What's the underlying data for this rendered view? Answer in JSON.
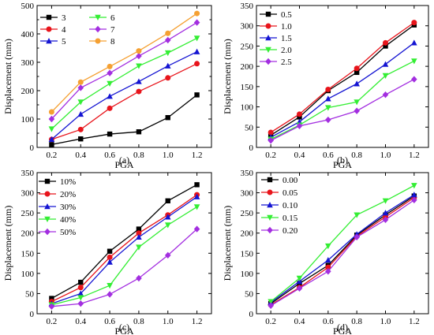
{
  "figure": {
    "width": 550,
    "height": 425
  },
  "chart_data": [
    {
      "type": "line",
      "panel_label": "(a)",
      "xlabel": "PGA",
      "ylabel": "Displacement (mm)",
      "x": [
        0.2,
        0.4,
        0.6,
        0.8,
        1.0,
        1.2
      ],
      "xlim": [
        0.1,
        1.3
      ],
      "ylim": [
        0,
        500
      ],
      "xticks": [
        0.2,
        0.4,
        0.6,
        0.8,
        1.0,
        1.2
      ],
      "xtick_labels": [
        "0.2",
        "0.4",
        "0.6",
        "0.8",
        "1.0",
        "1.2"
      ],
      "yticks": [
        0,
        50,
        100,
        150,
        200,
        250,
        300,
        350,
        400,
        450,
        500
      ],
      "ytick_labels": [
        "0",
        "",
        "100",
        "",
        "200",
        "",
        "300",
        "",
        "400",
        "",
        "500"
      ],
      "legend": {
        "position": "top-left",
        "columns": 2
      },
      "series": [
        {
          "name": "3",
          "color": "#000000",
          "marker": "square",
          "values": [
            10,
            30,
            47,
            55,
            105,
            185
          ]
        },
        {
          "name": "4",
          "color": "#e8141b",
          "marker": "circle",
          "values": [
            28,
            63,
            138,
            197,
            245,
            295
          ]
        },
        {
          "name": "5",
          "color": "#1414d2",
          "marker": "triangle-up",
          "values": [
            28,
            117,
            180,
            232,
            287,
            337
          ]
        },
        {
          "name": "6",
          "color": "#33ee33",
          "marker": "triangle-down",
          "values": [
            65,
            160,
            225,
            287,
            333,
            385
          ]
        },
        {
          "name": "7",
          "color": "#a32ee0",
          "marker": "diamond",
          "values": [
            100,
            210,
            262,
            322,
            378,
            440
          ]
        },
        {
          "name": "8",
          "color": "#f5a032",
          "marker": "circle",
          "values": [
            125,
            230,
            285,
            340,
            402,
            472
          ]
        }
      ]
    },
    {
      "type": "line",
      "panel_label": "(b)",
      "xlabel": "PGA",
      "ylabel": "Displacement (mm)",
      "x": [
        0.2,
        0.4,
        0.6,
        0.8,
        1.0,
        1.2
      ],
      "xlim": [
        0.1,
        1.3
      ],
      "ylim": [
        0,
        350
      ],
      "xticks": [
        0.2,
        0.4,
        0.6,
        0.8,
        1.0,
        1.2
      ],
      "xtick_labels": [
        "0.2",
        "0.4",
        "0.6",
        "0.8",
        "1.0",
        "1.2"
      ],
      "yticks": [
        0,
        50,
        100,
        150,
        200,
        250,
        300,
        350
      ],
      "ytick_labels": [
        "0",
        "50",
        "100",
        "150",
        "200",
        "250",
        "300",
        "350"
      ],
      "legend": {
        "position": "top-left",
        "columns": 1
      },
      "series": [
        {
          "name": "0.5",
          "color": "#000000",
          "marker": "square",
          "values": [
            30,
            75,
            140,
            185,
            250,
            302
          ]
        },
        {
          "name": "1.0",
          "color": "#e8141b",
          "marker": "circle",
          "values": [
            37,
            82,
            143,
            195,
            258,
            308
          ]
        },
        {
          "name": "1.5",
          "color": "#1414d2",
          "marker": "triangle-up",
          "values": [
            25,
            63,
            120,
            157,
            205,
            258
          ]
        },
        {
          "name": "2.0",
          "color": "#33ee33",
          "marker": "triangle-down",
          "values": [
            20,
            55,
            98,
            112,
            177,
            213
          ]
        },
        {
          "name": "2.5",
          "color": "#a32ee0",
          "marker": "diamond",
          "values": [
            17,
            53,
            68,
            90,
            130,
            168
          ]
        }
      ]
    },
    {
      "type": "line",
      "panel_label": "(c)",
      "xlabel": "PGA",
      "ylabel": "Displacement (mm)",
      "x": [
        0.2,
        0.4,
        0.6,
        0.8,
        1.0,
        1.2
      ],
      "xlim": [
        0.1,
        1.3
      ],
      "ylim": [
        0,
        350
      ],
      "xticks": [
        0.2,
        0.4,
        0.6,
        0.8,
        1.0,
        1.2
      ],
      "xtick_labels": [
        "0.2",
        "0.4",
        "0.6",
        "0.8",
        "1.0",
        "1.2"
      ],
      "yticks": [
        0,
        50,
        100,
        150,
        200,
        250,
        300,
        350
      ],
      "ytick_labels": [
        "0",
        "50",
        "100",
        "150",
        "200",
        "250",
        "300",
        "350"
      ],
      "legend": {
        "position": "top-left",
        "columns": 1
      },
      "series": [
        {
          "name": "10%",
          "color": "#000000",
          "marker": "square",
          "values": [
            38,
            78,
            155,
            210,
            280,
            320
          ]
        },
        {
          "name": "20%",
          "color": "#e8141b",
          "marker": "circle",
          "values": [
            30,
            65,
            140,
            200,
            245,
            295
          ]
        },
        {
          "name": "30%",
          "color": "#1414d2",
          "marker": "triangle-up",
          "values": [
            25,
            50,
            128,
            190,
            240,
            290
          ]
        },
        {
          "name": "40%",
          "color": "#33ee33",
          "marker": "triangle-down",
          "values": [
            22,
            40,
            70,
            165,
            220,
            265
          ]
        },
        {
          "name": "50%",
          "color": "#a32ee0",
          "marker": "diamond",
          "values": [
            18,
            25,
            48,
            88,
            145,
            210
          ]
        }
      ]
    },
    {
      "type": "line",
      "panel_label": "(d)",
      "xlabel": "PGA",
      "ylabel": "Displacement (mm)",
      "x": [
        0.2,
        0.4,
        0.6,
        0.8,
        1.0,
        1.2
      ],
      "xlim": [
        0.1,
        1.3
      ],
      "ylim": [
        0,
        350
      ],
      "xticks": [
        0.2,
        0.4,
        0.6,
        0.8,
        1.0,
        1.2
      ],
      "xtick_labels": [
        "0.2",
        "0.4",
        "0.6",
        "0.8",
        "1.0",
        "1.2"
      ],
      "yticks": [
        0,
        50,
        100,
        150,
        200,
        250,
        300,
        350
      ],
      "ytick_labels": [
        "0",
        "50",
        "100",
        "150",
        "200",
        "250",
        "300",
        "350"
      ],
      "legend": {
        "position": "top-left",
        "columns": 1
      },
      "series": [
        {
          "name": "0.00",
          "color": "#000000",
          "marker": "square",
          "values": [
            25,
            75,
            120,
            195,
            245,
            292
          ]
        },
        {
          "name": "0.05",
          "color": "#e8141b",
          "marker": "circle",
          "values": [
            22,
            65,
            115,
            192,
            240,
            288
          ]
        },
        {
          "name": "0.10",
          "color": "#1414d2",
          "marker": "triangle-up",
          "values": [
            28,
            80,
            133,
            197,
            250,
            295
          ]
        },
        {
          "name": "0.15",
          "color": "#33ee33",
          "marker": "triangle-down",
          "values": [
            30,
            88,
            168,
            245,
            280,
            318
          ]
        },
        {
          "name": "0.20",
          "color": "#a32ee0",
          "marker": "diamond",
          "values": [
            20,
            63,
            105,
            190,
            233,
            282
          ]
        }
      ]
    }
  ]
}
